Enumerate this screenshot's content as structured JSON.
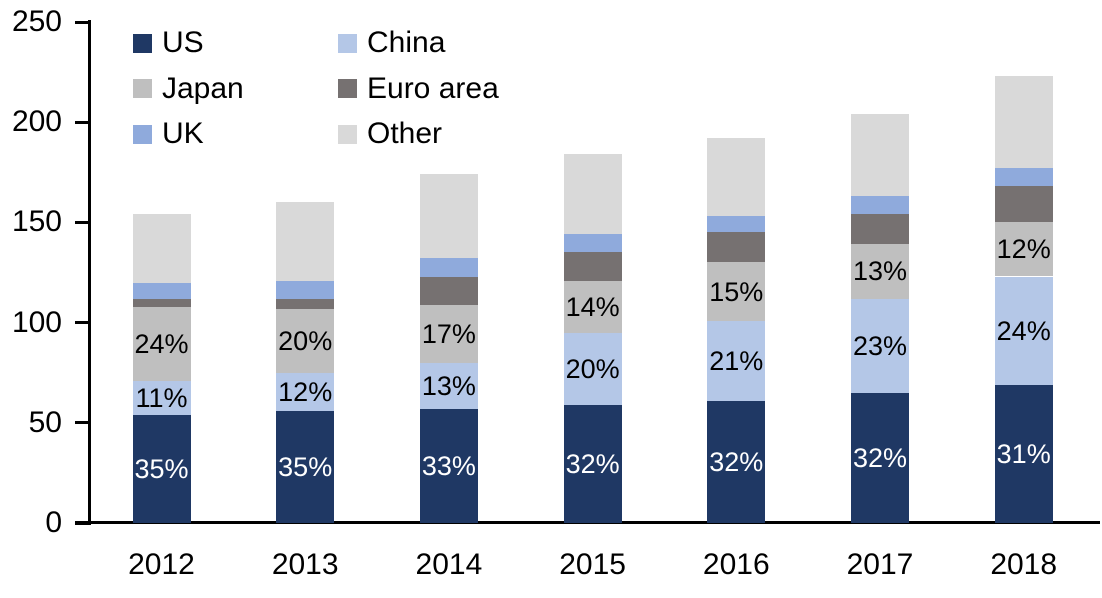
{
  "chart_data": {
    "type": "bar",
    "stacked": true,
    "title": "",
    "xlabel": "",
    "ylabel": "",
    "grid": false,
    "background_color": "#FFFFFF",
    "axis_color": "#000000",
    "categories": [
      "2012",
      "2013",
      "2014",
      "2015",
      "2016",
      "2017",
      "2018"
    ],
    "totals": [
      154,
      160,
      174,
      184,
      192,
      204,
      223
    ],
    "series": [
      {
        "name": "US",
        "color": "#1F3864",
        "values": [
          54,
          56,
          57,
          59,
          61,
          65,
          69
        ],
        "labels": [
          "35%",
          "35%",
          "33%",
          "32%",
          "32%",
          "32%",
          "31%"
        ],
        "label_color": "#FFFFFF"
      },
      {
        "name": "China",
        "color": "#B4C7E7",
        "values": [
          17,
          19,
          23,
          36,
          40,
          47,
          54
        ],
        "labels": [
          "11%",
          "12%",
          "13%",
          "20%",
          "21%",
          "23%",
          "24%"
        ],
        "label_color": "#000000"
      },
      {
        "name": "Japan",
        "color": "#BFBFBF",
        "values": [
          37,
          32,
          29,
          26,
          29,
          27,
          27
        ],
        "labels": [
          "24%",
          "20%",
          "17%",
          "14%",
          "15%",
          "13%",
          "12%"
        ],
        "label_color": "#000000"
      },
      {
        "name": "Euro area",
        "color": "#767171",
        "values": [
          4,
          5,
          14,
          14,
          15,
          15,
          18
        ],
        "labels": null,
        "label_color": null
      },
      {
        "name": "UK",
        "color": "#8FAADC",
        "values": [
          8,
          9,
          9,
          9,
          8,
          9,
          9
        ],
        "labels": null,
        "label_color": null
      },
      {
        "name": "Other",
        "color": "#D9D9D9",
        "values": [
          34,
          39,
          42,
          40,
          39,
          41,
          46
        ],
        "labels": null,
        "label_color": null
      }
    ],
    "y_axis": {
      "min": 0,
      "max": 250,
      "step": 50,
      "tick_labels": [
        "0",
        "50",
        "100",
        "150",
        "200",
        "250"
      ]
    },
    "legend": {
      "position": "top-left",
      "columns": 2,
      "order": [
        "US",
        "China",
        "Japan",
        "Euro area",
        "UK",
        "Other"
      ]
    }
  }
}
